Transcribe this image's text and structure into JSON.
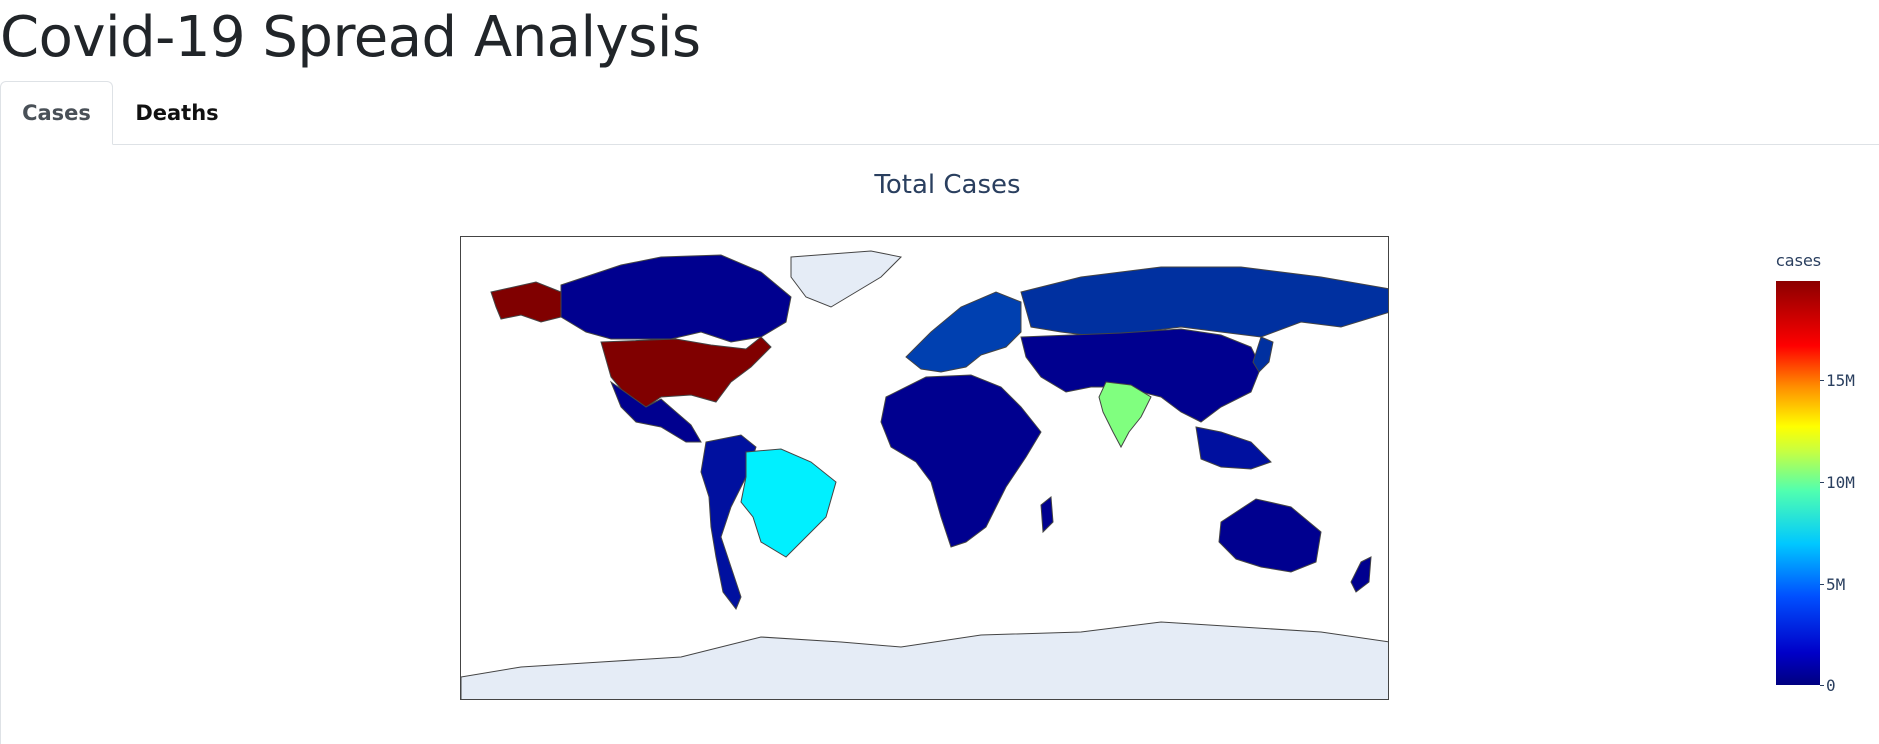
{
  "page": {
    "title": "Covid-19 Spread Analysis"
  },
  "tabs": [
    {
      "label": "Cases",
      "active": true
    },
    {
      "label": "Deaths",
      "active": false
    }
  ],
  "chart": {
    "title": "Total Cases",
    "colorbar_title": "cases",
    "colorbar_ticks": [
      "0",
      "5M",
      "10M",
      "15M"
    ],
    "colorscale": "jet",
    "land_color": "#e5ecf6",
    "border_color": "#444444"
  },
  "chart_data": {
    "type": "choropleth",
    "title": "Total Cases",
    "colorbar_title": "cases",
    "colorbar_range": [
      0,
      20000000
    ],
    "colorbar_ticks": [
      "0",
      "5M",
      "10M",
      "15M"
    ],
    "regions": [
      {
        "name": "United States",
        "value": 20000000,
        "color": "#800000"
      },
      {
        "name": "India",
        "value": 10300000,
        "color": "#80ff7f"
      },
      {
        "name": "Brazil",
        "value": 7700000,
        "color": "#00f0ff"
      },
      {
        "name": "Russia",
        "value": 3200000,
        "color": "#0030a0"
      },
      {
        "name": "Europe (UK, France, Spain, Italy, Turkey)",
        "value": 2500000,
        "color": "#0040b0"
      },
      {
        "name": "Rest of World",
        "value": 500000,
        "color": "#00007f"
      },
      {
        "name": "Greenland",
        "value": null,
        "color": "#e5ecf6"
      },
      {
        "name": "Antarctica",
        "value": null,
        "color": "#e5ecf6"
      }
    ]
  }
}
